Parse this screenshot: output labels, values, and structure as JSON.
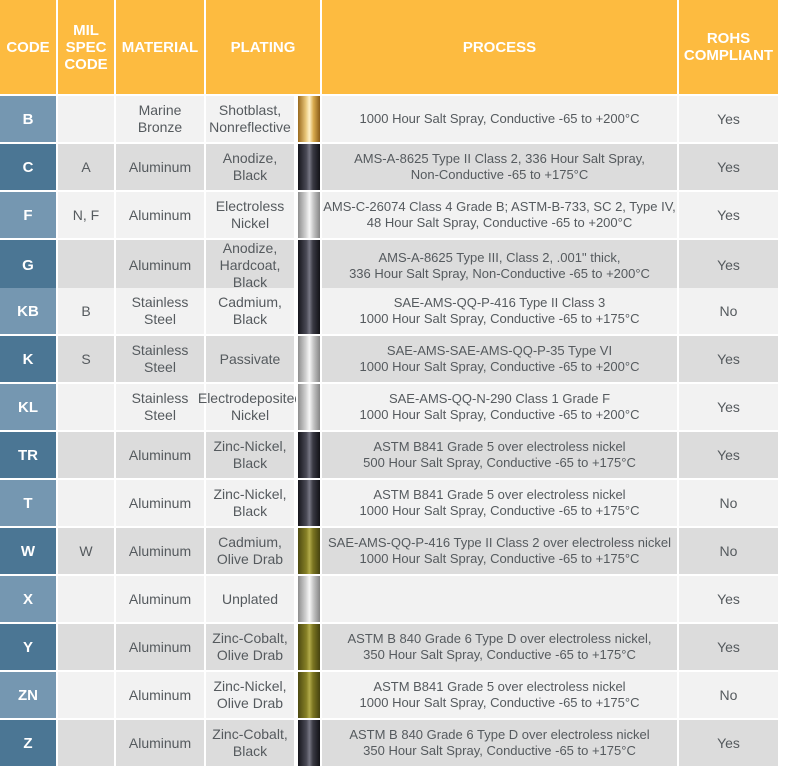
{
  "headers": {
    "code": "CODE",
    "mil_spec": "MIL\nSPEC\nCODE",
    "material": "MATERIAL",
    "plating": "PLATING",
    "process": "PROCESS",
    "rohs": "ROHS\nCOMPLIANT"
  },
  "rows": [
    {
      "code": "B",
      "mil": "",
      "material": "Marine\nBronze",
      "plating": "Shotblast,\nNonreflective",
      "swatch": "bronze",
      "process": "1000 Hour Salt Spray, Conductive -65 to +200°C",
      "rohs": "Yes"
    },
    {
      "code": "C",
      "mil": "A",
      "material": "Aluminum",
      "plating": "Anodize,\nBlack",
      "swatch": "black",
      "process": "AMS-A-8625 Type II Class 2, 336 Hour Salt Spray,\nNon-Conductive -65 to +175°C",
      "rohs": "Yes"
    },
    {
      "code": "F",
      "mil": "N, F",
      "material": "Aluminum",
      "plating": "Electroless\nNickel",
      "swatch": "silver",
      "process": "AMS-C-26074 Class 4 Grade B; ASTM-B-733, SC 2, Type IV,\n48 Hour Salt Spray, Conductive -65 to +200°C",
      "rohs": "Yes"
    },
    {
      "code": "G",
      "mil": "",
      "material": "Aluminum",
      "plating": "Anodize,\nHardcoat, Black",
      "swatch": "black",
      "process": "AMS-A-8625 Type III, Class 2, .001\" thick,\n336 Hour Salt Spray, Non-Conductive -65 to +200°C",
      "rohs": "Yes"
    },
    {
      "code": "KB",
      "mil": "B",
      "material": "Stainless\nSteel",
      "plating": "Cadmium,\nBlack",
      "swatch": "black",
      "process": "SAE-AMS-QQ-P-416 Type II Class 3\n1000 Hour Salt Spray, Conductive -65 to +175°C",
      "rohs": "No"
    },
    {
      "code": "K",
      "mil": "S",
      "material": "Stainless\nSteel",
      "plating": "Passivate",
      "swatch": "silver",
      "process": "SAE-AMS-SAE-AMS-QQ-P-35 Type VI\n1000 Hour Salt Spray, Conductive -65 to +200°C",
      "rohs": "Yes"
    },
    {
      "code": "KL",
      "mil": "",
      "material": "Stainless\nSteel",
      "plating": "Electrodeposited\nNickel",
      "swatch": "silver",
      "process": "SAE-AMS-QQ-N-290 Class 1 Grade F\n1000 Hour Salt Spray, Conductive -65 to +200°C",
      "rohs": "Yes"
    },
    {
      "code": "TR",
      "mil": "",
      "material": "Aluminum",
      "plating": "Zinc-Nickel,\nBlack",
      "swatch": "black",
      "process": "ASTM B841 Grade 5 over electroless nickel\n500 Hour Salt Spray, Conductive -65 to +175°C",
      "rohs": "Yes"
    },
    {
      "code": "T",
      "mil": "",
      "material": "Aluminum",
      "plating": "Zinc-Nickel,\nBlack",
      "swatch": "black",
      "process": "ASTM B841 Grade 5 over electroless nickel\n1000 Hour Salt Spray, Conductive -65 to +175°C",
      "rohs": "No"
    },
    {
      "code": "W",
      "mil": "W",
      "material": "Aluminum",
      "plating": "Cadmium,\nOlive Drab",
      "swatch": "olive",
      "process": "SAE-AMS-QQ-P-416 Type II Class 2 over electroless nickel\n1000 Hour Salt Spray, Conductive -65 to +175°C",
      "rohs": "No"
    },
    {
      "code": "X",
      "mil": "",
      "material": "Aluminum",
      "plating": "Unplated",
      "swatch": "silver",
      "process": "",
      "rohs": "Yes"
    },
    {
      "code": "Y",
      "mil": "",
      "material": "Aluminum",
      "plating": "Zinc-Cobalt,\nOlive Drab",
      "swatch": "olive",
      "process": "ASTM B 840 Grade 6 Type D over electroless nickel,\n350 Hour Salt Spray, Conductive -65 to +175°C",
      "rohs": "Yes"
    },
    {
      "code": "ZN",
      "mil": "",
      "material": "Aluminum",
      "plating": "Zinc-Nickel,\nOlive Drab",
      "swatch": "olive",
      "process": "ASTM B841 Grade 5 over electroless nickel\n1000 Hour Salt Spray, Conductive -65 to +175°C",
      "rohs": "No"
    },
    {
      "code": "Z",
      "mil": "",
      "material": "Aluminum",
      "plating": "Zinc-Cobalt,\nBlack",
      "swatch": "black",
      "process": "ASTM B 840 Grade 6 Type D over electroless nickel\n350 Hour Salt Spray, Conductive -65 to +175°C",
      "rohs": "Yes"
    }
  ],
  "colors": {
    "header_bg": "#fdbb40",
    "code_dark": "#4b7694",
    "code_light": "#7597b1",
    "row_light": "#f2f2f2",
    "row_dark": "#dcdcdc"
  }
}
